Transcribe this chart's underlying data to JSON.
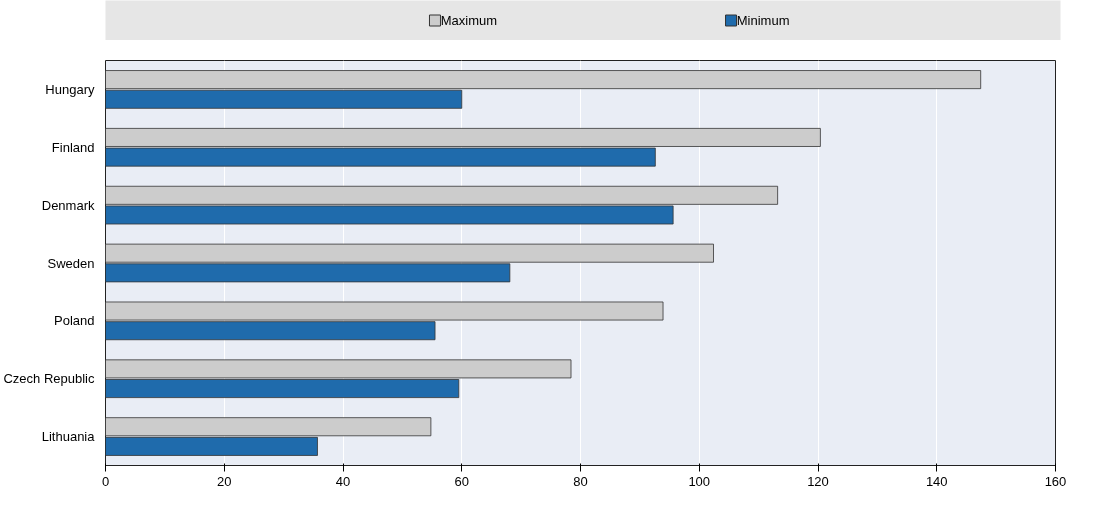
{
  "chart_data": {
    "type": "bar",
    "orientation": "horizontal",
    "categories": [
      "Hungary",
      "Finland",
      "Denmark",
      "Sweden",
      "Poland",
      "Czech Republic",
      "Lithuania"
    ],
    "series": [
      {
        "name": "Maximum",
        "color": "#cccccc",
        "values": [
          147.4,
          120.4,
          113.2,
          102.4,
          93.9,
          78.4,
          54.8
        ]
      },
      {
        "name": "Minimum",
        "color": "#1f6bac",
        "values": [
          60,
          92.6,
          95.6,
          68.1,
          55.5,
          59.5,
          35.7
        ]
      }
    ],
    "xlim": [
      0,
      160
    ],
    "xticks": [
      0,
      20,
      40,
      60,
      80,
      100,
      120,
      140,
      160
    ],
    "grid": "x",
    "legend": "top"
  }
}
